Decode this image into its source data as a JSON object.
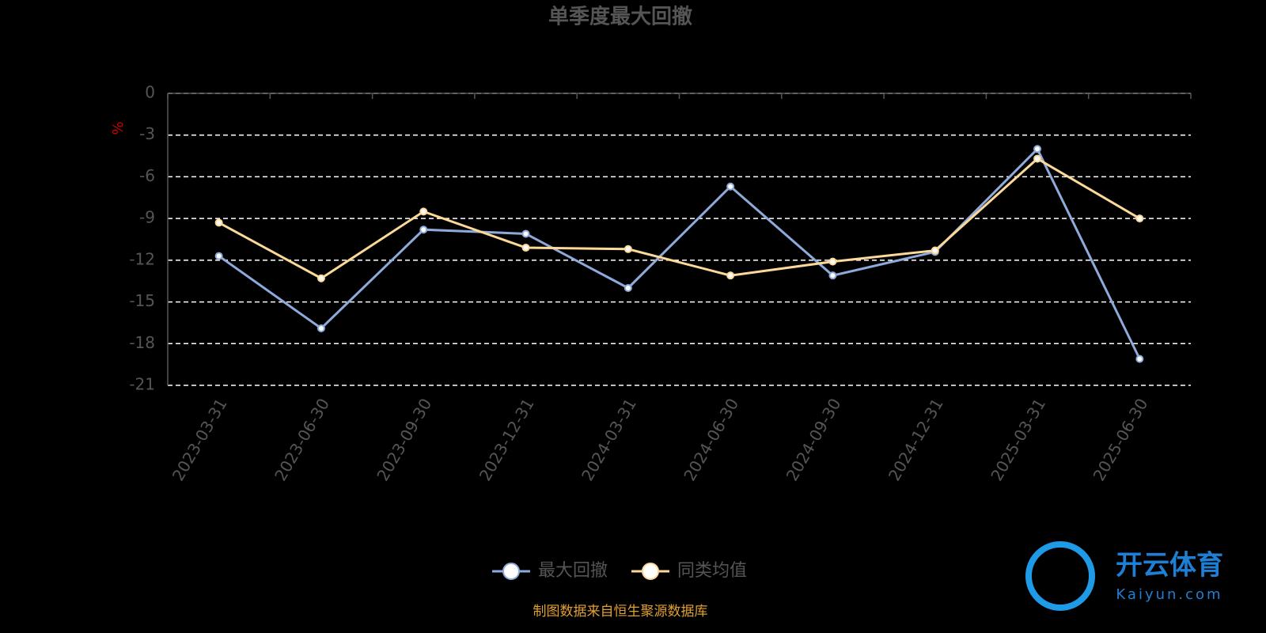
{
  "chart_data": {
    "type": "line",
    "title": "单季度最大回撤",
    "y_label": "%",
    "categories": [
      "2023-03-31",
      "2023-06-30",
      "2023-09-30",
      "2023-12-31",
      "2024-03-31",
      "2024-06-30",
      "2024-09-30",
      "2024-12-31",
      "2025-03-31",
      "2025-06-30"
    ],
    "series": [
      {
        "name": "最大回撤",
        "color": "#8eaadb",
        "values": [
          -11.7,
          -16.9,
          -9.8,
          -10.1,
          -14.0,
          -6.7,
          -13.1,
          -11.4,
          -4.0,
          -19.1
        ]
      },
      {
        "name": "同类均值",
        "color": "#fcd998",
        "values": [
          -9.3,
          -13.3,
          -8.5,
          -11.1,
          -11.2,
          -13.1,
          -12.1,
          -11.3,
          -4.7,
          -9.0
        ]
      }
    ],
    "ylim": [
      -21,
      0
    ],
    "yticks": [
      0,
      -3,
      -6,
      -9,
      -12,
      -15,
      -18,
      -21
    ],
    "grid": true,
    "source": "制图数据来自恒生聚源数据库",
    "watermark": {
      "brand": "开云体育",
      "url": "Kaiyun.com"
    }
  }
}
